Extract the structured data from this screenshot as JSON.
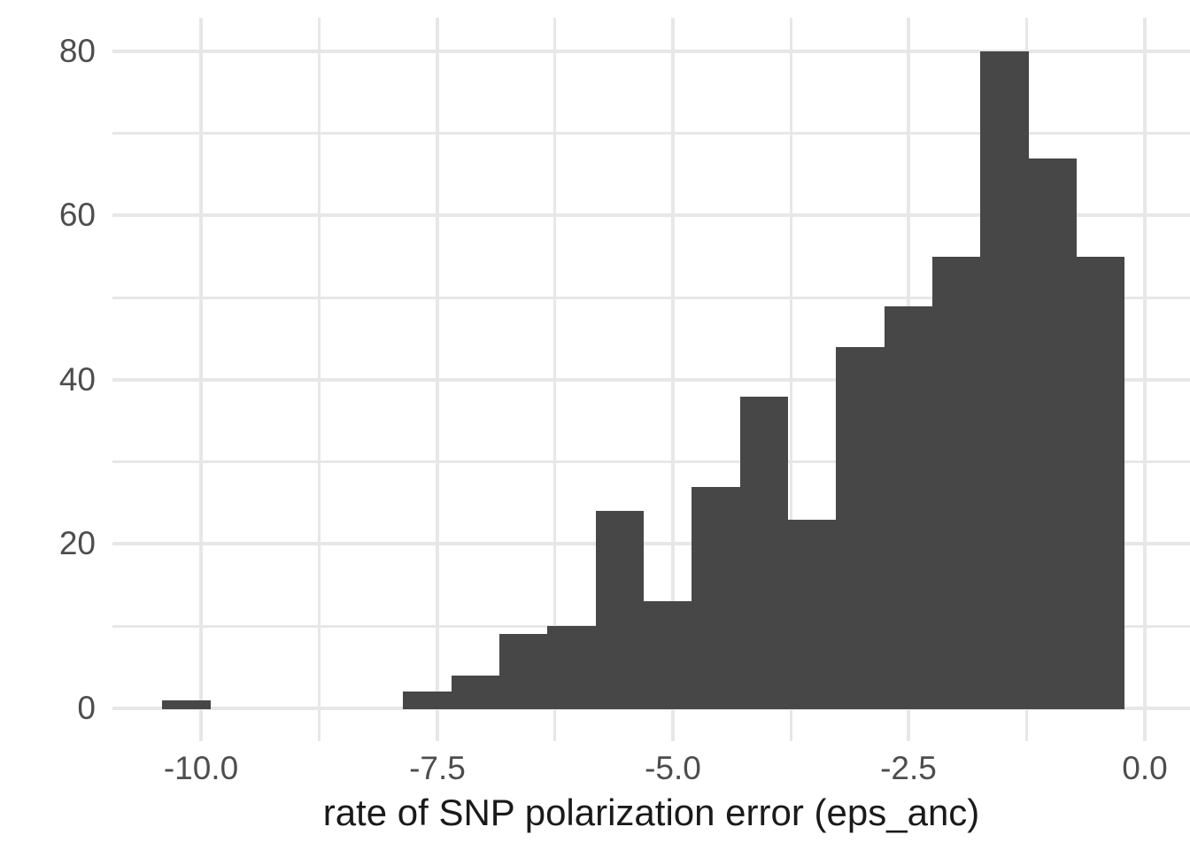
{
  "figure": {
    "xlabel": "rate of SNP polarization error (eps_anc)",
    "colors": {
      "bar_fill": "#474747",
      "grid": "#e7e7e7",
      "tick_text": "#4d4d4d",
      "axis_title_text": "#1a1a1a",
      "background": "#ffffff"
    }
  },
  "chart_data": {
    "type": "bar",
    "subtype": "histogram",
    "title": "",
    "xlabel": "rate of SNP polarization error (eps_anc)",
    "ylabel": "",
    "bin_start": -10.41,
    "bin_width": 0.51,
    "counts": [
      1,
      0,
      0,
      0,
      0,
      2,
      4,
      9,
      10,
      24,
      13,
      27,
      38,
      23,
      44,
      49,
      55,
      80,
      67,
      55
    ],
    "total_count": 501,
    "x_ticks": [
      {
        "value": -10.0,
        "label": "-10.0"
      },
      {
        "value": -7.5,
        "label": "-7.5"
      },
      {
        "value": -5.0,
        "label": "-5.0"
      },
      {
        "value": -2.5,
        "label": "-2.5"
      },
      {
        "value": 0.0,
        "label": "0.0"
      }
    ],
    "x_minor_ticks": [
      -8.75,
      -6.25,
      -3.75,
      -1.25
    ],
    "y_ticks": [
      {
        "value": 0,
        "label": "0"
      },
      {
        "value": 20,
        "label": "20"
      },
      {
        "value": 40,
        "label": "40"
      },
      {
        "value": 60,
        "label": "60"
      },
      {
        "value": 80,
        "label": "80"
      }
    ],
    "y_minor_ticks": [
      10,
      30,
      50,
      70
    ],
    "xlim": [
      -10.94,
      0.48
    ],
    "ylim": [
      -4,
      84.1
    ],
    "grid": true,
    "legend_position": "none"
  }
}
